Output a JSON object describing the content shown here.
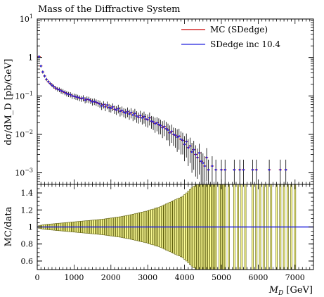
{
  "chart_data": [
    {
      "type": "scatter",
      "title": "Mass of the Diffractive System",
      "ylabel": "dσ/dM_D [pb/GeV]",
      "xlabel": "",
      "yscale": "log",
      "xlim": [
        0,
        7500
      ],
      "ylim": [
        0.0005,
        10
      ],
      "grid": false,
      "legend_position": "top-right",
      "x_ticks": [
        {
          "v": 0,
          "label": "0"
        },
        {
          "v": 1000,
          "label": "1000"
        },
        {
          "v": 2000,
          "label": "2000"
        },
        {
          "v": 3000,
          "label": "3000"
        },
        {
          "v": 4000,
          "label": "4000"
        },
        {
          "v": 5000,
          "label": "5000"
        },
        {
          "v": 6000,
          "label": "6000"
        },
        {
          "v": 7000,
          "label": "7000"
        }
      ],
      "y_ticks": [
        {
          "v": 10,
          "base": "10",
          "exp": "1"
        },
        {
          "v": 1,
          "base": "1",
          "exp": ""
        },
        {
          "v": 0.1,
          "base": "10",
          "exp": "−1"
        },
        {
          "v": 0.01,
          "base": "10",
          "exp": "−2"
        },
        {
          "v": 0.001,
          "base": "10",
          "exp": "−3"
        }
      ],
      "series": [
        {
          "name": "MC (SDedge)",
          "color": "#cc0000"
        },
        {
          "name": "SDedge inc 10.4",
          "color": "#2222dd"
        }
      ],
      "points": [
        [
          50,
          1.05,
          0.1
        ],
        [
          100,
          0.6,
          0.05
        ],
        [
          150,
          0.42,
          0.04
        ],
        [
          200,
          0.33,
          0.03
        ],
        [
          250,
          0.27,
          0.025
        ],
        [
          300,
          0.235,
          0.02
        ],
        [
          350,
          0.21,
          0.02
        ],
        [
          400,
          0.19,
          0.02
        ],
        [
          450,
          0.175,
          0.02
        ],
        [
          500,
          0.16,
          0.02
        ],
        [
          550,
          0.15,
          0.02
        ],
        [
          600,
          0.145,
          0.02
        ],
        [
          650,
          0.135,
          0.02
        ],
        [
          700,
          0.13,
          0.02
        ],
        [
          750,
          0.122,
          0.018
        ],
        [
          800,
          0.115,
          0.018
        ],
        [
          850,
          0.11,
          0.017
        ],
        [
          900,
          0.108,
          0.017
        ],
        [
          950,
          0.1,
          0.016
        ],
        [
          1000,
          0.098,
          0.016
        ],
        [
          1050,
          0.095,
          0.016
        ],
        [
          1100,
          0.092,
          0.015
        ],
        [
          1150,
          0.088,
          0.015
        ],
        [
          1200,
          0.085,
          0.015
        ],
        [
          1250,
          0.088,
          0.016
        ],
        [
          1300,
          0.078,
          0.014
        ],
        [
          1350,
          0.082,
          0.015
        ],
        [
          1400,
          0.08,
          0.015
        ],
        [
          1450,
          0.075,
          0.014
        ],
        [
          1500,
          0.07,
          0.014
        ],
        [
          1550,
          0.072,
          0.014
        ],
        [
          1600,
          0.068,
          0.013
        ],
        [
          1650,
          0.065,
          0.013
        ],
        [
          1700,
          0.062,
          0.013
        ],
        [
          1750,
          0.055,
          0.012
        ],
        [
          1800,
          0.06,
          0.013
        ],
        [
          1850,
          0.052,
          0.012
        ],
        [
          1900,
          0.058,
          0.013
        ],
        [
          1950,
          0.05,
          0.012
        ],
        [
          2000,
          0.048,
          0.011
        ],
        [
          2050,
          0.052,
          0.012
        ],
        [
          2100,
          0.045,
          0.011
        ],
        [
          2150,
          0.043,
          0.011
        ],
        [
          2200,
          0.047,
          0.012
        ],
        [
          2250,
          0.04,
          0.011
        ],
        [
          2300,
          0.042,
          0.011
        ],
        [
          2350,
          0.038,
          0.01
        ],
        [
          2400,
          0.036,
          0.01
        ],
        [
          2450,
          0.039,
          0.011
        ],
        [
          2500,
          0.034,
          0.01
        ],
        [
          2550,
          0.037,
          0.011
        ],
        [
          2600,
          0.032,
          0.01
        ],
        [
          2650,
          0.035,
          0.011
        ],
        [
          2700,
          0.03,
          0.01
        ],
        [
          2750,
          0.028,
          0.009
        ],
        [
          2800,
          0.031,
          0.01
        ],
        [
          2850,
          0.027,
          0.009
        ],
        [
          2900,
          0.029,
          0.01
        ],
        [
          2950,
          0.025,
          0.009
        ],
        [
          3000,
          0.024,
          0.009
        ],
        [
          3050,
          0.027,
          0.01
        ],
        [
          3100,
          0.022,
          0.008
        ],
        [
          3150,
          0.021,
          0.008
        ],
        [
          3200,
          0.019,
          0.008
        ],
        [
          3250,
          0.02,
          0.008
        ],
        [
          3300,
          0.018,
          0.008
        ],
        [
          3350,
          0.017,
          0.007
        ],
        [
          3400,
          0.015,
          0.007
        ],
        [
          3450,
          0.016,
          0.007
        ],
        [
          3500,
          0.014,
          0.007
        ],
        [
          3550,
          0.013,
          0.006
        ],
        [
          3600,
          0.011,
          0.006
        ],
        [
          3650,
          0.012,
          0.006
        ],
        [
          3700,
          0.01,
          0.005
        ],
        [
          3750,
          0.0095,
          0.005
        ],
        [
          3800,
          0.0085,
          0.005
        ],
        [
          3850,
          0.009,
          0.005
        ],
        [
          3900,
          0.0075,
          0.0045
        ],
        [
          3950,
          0.007,
          0.004
        ],
        [
          4000,
          0.0055,
          0.0035
        ],
        [
          4050,
          0.0065,
          0.004
        ],
        [
          4100,
          0.0045,
          0.003
        ],
        [
          4150,
          0.005,
          0.0032
        ],
        [
          4200,
          0.0035,
          0.0025
        ],
        [
          4250,
          0.004,
          0.0028
        ],
        [
          4300,
          0.003,
          0.0022
        ],
        [
          4350,
          0.0025,
          0.0018
        ],
        [
          4400,
          0.0033,
          0.0024
        ],
        [
          4450,
          0.002,
          0.0015
        ],
        [
          4500,
          0.0018,
          0.0014
        ],
        [
          4550,
          0.0015,
          0.0012
        ],
        [
          4600,
          0.0025,
          0.0019
        ],
        [
          4650,
          0.0012,
          0.001
        ],
        [
          4750,
          0.0015,
          0.0012
        ],
        [
          4850,
          0.0012,
          0.001
        ],
        [
          5000,
          0.0012,
          0.001
        ],
        [
          5100,
          0.0012,
          0.001
        ],
        [
          5350,
          0.0012,
          0.001
        ],
        [
          5500,
          0.0012,
          0.001
        ],
        [
          5600,
          0.0012,
          0.001
        ],
        [
          5850,
          0.0012,
          0.001
        ],
        [
          5950,
          0.0012,
          0.001
        ],
        [
          6300,
          0.0012,
          0.001
        ],
        [
          6600,
          0.0012,
          0.001
        ],
        [
          6750,
          0.0012,
          0.001
        ]
      ]
    },
    {
      "type": "bar",
      "title": "",
      "ylabel": "MC/data",
      "xlabel": "M_D [GeV]",
      "xlim": [
        0,
        7500
      ],
      "ylim": [
        0.5,
        1.5
      ],
      "grid": false,
      "y_ticks": [
        {
          "v": 0.6,
          "label": "0.6"
        },
        {
          "v": 0.8,
          "label": "0.8"
        },
        {
          "v": 1.0,
          "label": "1"
        },
        {
          "v": 1.2,
          "label": "1.2"
        },
        {
          "v": 1.4,
          "label": "1.4"
        }
      ],
      "ratio_line": 1.0,
      "band_color": "#ffff99",
      "band_edge_color": "#555500",
      "line_color": "#2222dd",
      "bins": [
        [
          50,
          0.015
        ],
        [
          100,
          0.02
        ],
        [
          150,
          0.025
        ],
        [
          200,
          0.028
        ],
        [
          250,
          0.03
        ],
        [
          300,
          0.032
        ],
        [
          350,
          0.034
        ],
        [
          400,
          0.036
        ],
        [
          450,
          0.038
        ],
        [
          500,
          0.04
        ],
        [
          550,
          0.042
        ],
        [
          600,
          0.044
        ],
        [
          650,
          0.046
        ],
        [
          700,
          0.048
        ],
        [
          750,
          0.05
        ],
        [
          800,
          0.052
        ],
        [
          850,
          0.054
        ],
        [
          900,
          0.056
        ],
        [
          950,
          0.058
        ],
        [
          1000,
          0.06
        ],
        [
          1050,
          0.062
        ],
        [
          1100,
          0.064
        ],
        [
          1150,
          0.066
        ],
        [
          1200,
          0.068
        ],
        [
          1250,
          0.07
        ],
        [
          1300,
          0.072
        ],
        [
          1350,
          0.074
        ],
        [
          1400,
          0.076
        ],
        [
          1450,
          0.078
        ],
        [
          1500,
          0.08
        ],
        [
          1550,
          0.082
        ],
        [
          1600,
          0.084
        ],
        [
          1650,
          0.086
        ],
        [
          1700,
          0.088
        ],
        [
          1750,
          0.09
        ],
        [
          1800,
          0.093
        ],
        [
          1850,
          0.096
        ],
        [
          1900,
          0.099
        ],
        [
          1950,
          0.102
        ],
        [
          2000,
          0.105
        ],
        [
          2050,
          0.108
        ],
        [
          2100,
          0.111
        ],
        [
          2150,
          0.114
        ],
        [
          2200,
          0.117
        ],
        [
          2250,
          0.12
        ],
        [
          2300,
          0.124
        ],
        [
          2350,
          0.128
        ],
        [
          2400,
          0.132
        ],
        [
          2450,
          0.136
        ],
        [
          2500,
          0.14
        ],
        [
          2550,
          0.145
        ],
        [
          2600,
          0.15
        ],
        [
          2650,
          0.155
        ],
        [
          2700,
          0.16
        ],
        [
          2750,
          0.165
        ],
        [
          2800,
          0.17
        ],
        [
          2850,
          0.175
        ],
        [
          2900,
          0.18
        ],
        [
          2950,
          0.185
        ],
        [
          3000,
          0.19
        ],
        [
          3050,
          0.2
        ],
        [
          3100,
          0.205
        ],
        [
          3150,
          0.21
        ],
        [
          3200,
          0.22
        ],
        [
          3250,
          0.225
        ],
        [
          3300,
          0.23
        ],
        [
          3350,
          0.24
        ],
        [
          3400,
          0.25
        ],
        [
          3450,
          0.26
        ],
        [
          3500,
          0.27
        ],
        [
          3550,
          0.28
        ],
        [
          3600,
          0.29
        ],
        [
          3650,
          0.3
        ],
        [
          3700,
          0.31
        ],
        [
          3750,
          0.32
        ],
        [
          3800,
          0.33
        ],
        [
          3850,
          0.34
        ],
        [
          3900,
          0.35
        ],
        [
          3950,
          0.36
        ],
        [
          4000,
          0.38
        ],
        [
          4050,
          0.4
        ],
        [
          4100,
          0.42
        ],
        [
          4150,
          0.44
        ],
        [
          4200,
          0.46
        ],
        [
          4250,
          0.48
        ],
        [
          4300,
          0.5
        ],
        [
          4350,
          0.52
        ],
        [
          4400,
          0.54
        ],
        [
          4450,
          0.58
        ],
        [
          4500,
          0.6
        ],
        [
          4550,
          0.6
        ],
        [
          4600,
          0.6
        ],
        [
          4650,
          0.6
        ],
        [
          4700,
          0.6
        ],
        [
          4750,
          0.6
        ],
        [
          4800,
          0.6
        ],
        [
          4850,
          0.6
        ],
        [
          4950,
          0.6
        ],
        [
          5000,
          0.6
        ],
        [
          5050,
          0.6
        ],
        [
          5100,
          0.6
        ],
        [
          5200,
          0.6
        ],
        [
          5350,
          0.6
        ],
        [
          5450,
          0.6
        ],
        [
          5550,
          0.6
        ],
        [
          5650,
          0.6
        ],
        [
          5850,
          0.6
        ],
        [
          5950,
          0.6
        ],
        [
          6050,
          0.6
        ],
        [
          6150,
          0.6
        ],
        [
          6250,
          0.6
        ],
        [
          6350,
          0.6
        ],
        [
          6500,
          0.6
        ],
        [
          6600,
          0.6
        ],
        [
          6700,
          0.6
        ],
        [
          6800,
          0.6
        ],
        [
          6900,
          0.6
        ],
        [
          7000,
          0.6
        ]
      ]
    }
  ]
}
